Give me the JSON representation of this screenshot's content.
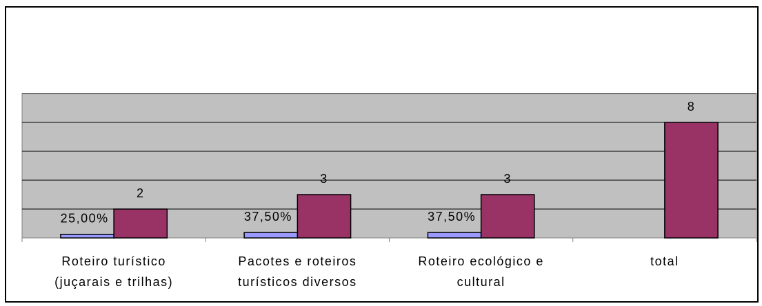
{
  "chart_data": {
    "type": "bar",
    "categories": [
      "Roteiro turístico\n(juçarais e trilhas)",
      "Pacotes e roteiros\nturísticos diversos",
      "Roteiro ecológico e\ncultural",
      "total"
    ],
    "series": [
      {
        "color": "#9999ff",
        "values": [
          0.25,
          0.375,
          0.375,
          null
        ],
        "value_labels": [
          "25,00%",
          "37,50%",
          "37,50%",
          null
        ]
      },
      {
        "color": "#993366",
        "values": [
          2,
          3,
          3,
          8
        ]
      }
    ],
    "ylim": [
      0,
      10
    ],
    "yticks": [
      0,
      2,
      4,
      6,
      8,
      10
    ],
    "grid": true,
    "plot_background": "#c0c0c0"
  }
}
